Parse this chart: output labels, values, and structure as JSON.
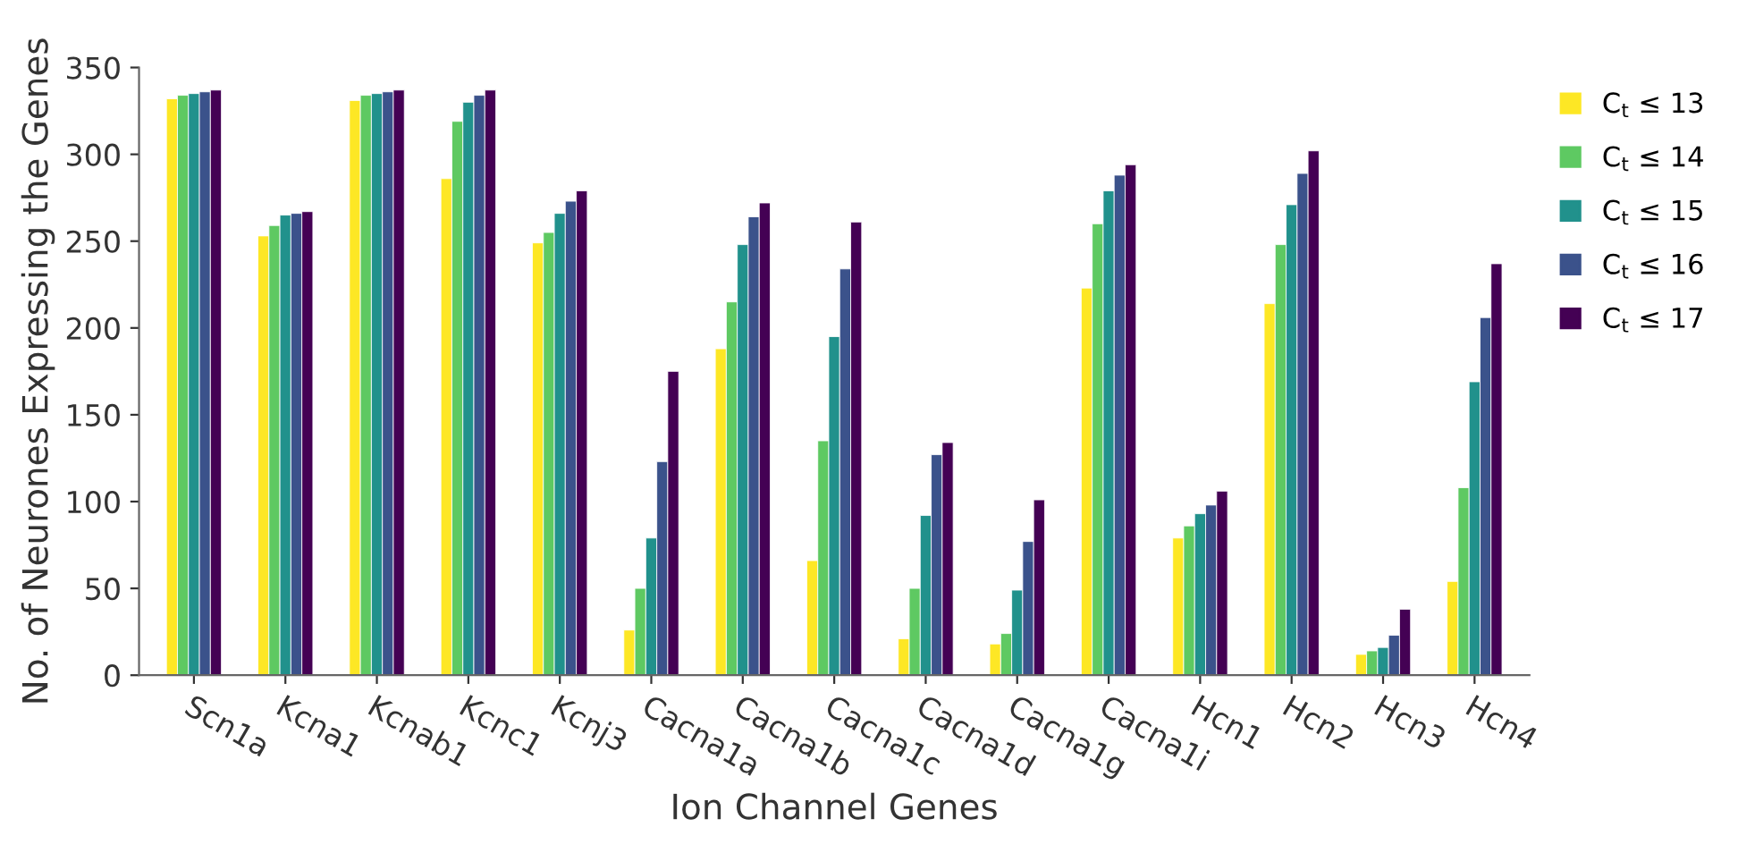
{
  "chart_data": {
    "type": "bar",
    "xlabel": "Ion Channel Genes",
    "ylabel": "No. of Neurones Expressing the Genes",
    "categories": [
      "Scn1a",
      "Kcna1",
      "Kcnab1",
      "Kcnc1",
      "Kcnj3",
      "Cacna1a",
      "Cacna1b",
      "Cacna1c",
      "Cacna1d",
      "Cacna1g",
      "Cacna1i",
      "Hcn1",
      "Hcn2",
      "Hcn3",
      "Hcn4"
    ],
    "series": [
      {
        "name": "C$_{t}$ ≤ 13",
        "color": "#fde725",
        "values": [
          332,
          253,
          331,
          286,
          249,
          26,
          188,
          66,
          21,
          18,
          223,
          79,
          214,
          12,
          54
        ]
      },
      {
        "name": "C$_{t}$ ≤ 14",
        "color": "#5ec962",
        "values": [
          334,
          259,
          334,
          319,
          255,
          50,
          215,
          135,
          50,
          24,
          260,
          86,
          248,
          14,
          108
        ]
      },
      {
        "name": "C$_{t}$ ≤ 15",
        "color": "#21918c",
        "values": [
          335,
          265,
          335,
          330,
          266,
          79,
          248,
          195,
          92,
          49,
          279,
          93,
          271,
          16,
          169
        ]
      },
      {
        "name": "C$_{t}$ ≤ 16",
        "color": "#3b528b",
        "values": [
          336,
          266,
          336,
          334,
          273,
          123,
          264,
          234,
          127,
          77,
          288,
          98,
          289,
          23,
          206
        ]
      },
      {
        "name": "C$_{t}$ ≤ 17",
        "color": "#440154",
        "values": [
          337,
          267,
          337,
          337,
          279,
          175,
          272,
          261,
          134,
          101,
          294,
          106,
          302,
          38,
          237
        ]
      }
    ],
    "ylim": [
      0,
      350
    ],
    "yticks": [
      0,
      50,
      100,
      150,
      200,
      250,
      300,
      350
    ],
    "grid": false,
    "legend": "top right"
  }
}
